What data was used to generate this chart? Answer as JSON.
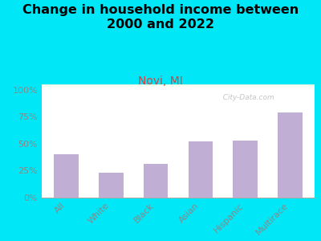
{
  "title": "Change in household income between\n2000 and 2022",
  "subtitle": "Novi, MI",
  "categories": [
    "All",
    "White",
    "Black",
    "Asian",
    "Hispanic",
    "Multirace"
  ],
  "values": [
    40,
    23,
    31,
    52,
    53,
    79
  ],
  "bar_color": "#c0aed4",
  "title_fontsize": 11.5,
  "subtitle_fontsize": 10,
  "subtitle_color": "#cc4444",
  "background_outer": "#00e8f8",
  "plot_bg_topleft": "#d8eedd",
  "plot_bg_bottomright": "#f2fff2",
  "yticks": [
    0,
    25,
    50,
    75,
    100
  ],
  "ylim": [
    0,
    105
  ],
  "watermark": "  City-Data.com",
  "watermark_color": "#bbbbbb",
  "tick_color": "#888888",
  "grid_color": "#dddddd"
}
